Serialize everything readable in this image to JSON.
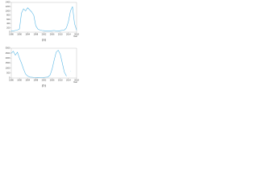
{
  "chart_data": [
    {
      "type": "line",
      "caption": "(a)",
      "x_label": "Year",
      "x": [
        1986,
        1987,
        1988,
        1989,
        1990,
        1991,
        1992,
        1993,
        1994,
        1995,
        1996,
        1997,
        1998,
        1999,
        2000,
        2001,
        2002,
        2003,
        2004,
        2005,
        2006,
        2007,
        2008,
        2009,
        2010,
        2011,
        2012,
        2013,
        2014,
        2015,
        2016,
        2017,
        2018
      ],
      "values": [
        50,
        60,
        80,
        100,
        150,
        900,
        1100,
        1000,
        1150,
        1050,
        950,
        800,
        300,
        150,
        100,
        80,
        70,
        60,
        50,
        60,
        70,
        80,
        60,
        50,
        70,
        90,
        100,
        200,
        500,
        1000,
        1200,
        400,
        100
      ],
      "color": "#5bb8e6",
      "xlim": [
        1986,
        2018
      ],
      "xticks": [
        1986,
        1990,
        1994,
        1998,
        2002,
        2006,
        2010,
        2014,
        2018
      ],
      "ylim": [
        0,
        1400
      ],
      "yticks": [
        0,
        200,
        400,
        600,
        800,
        1000,
        1200,
        1400
      ]
    },
    {
      "type": "line",
      "caption": "(b)",
      "x_label": "Year",
      "x": [
        1986,
        1987,
        1988,
        1989,
        1990,
        1991,
        1992,
        1993,
        1994,
        1995,
        1996,
        1997,
        1998,
        1999,
        2000,
        2001,
        2002,
        2003,
        2004,
        2005,
        2006,
        2007,
        2008,
        2009,
        2010,
        2011,
        2012,
        2013,
        2014,
        2015,
        2016,
        2017,
        2018
      ],
      "values": [
        2500,
        2700,
        2300,
        2600,
        2000,
        1500,
        900,
        400,
        200,
        100,
        80,
        60,
        50,
        60,
        50,
        40,
        60,
        80,
        100,
        300,
        900,
        1800,
        2600,
        2800,
        2400,
        1500,
        600,
        200,
        null,
        700,
        null,
        null,
        null
      ],
      "color": "#5bb8e6",
      "xlim": [
        1986,
        2018
      ],
      "xticks": [
        1986,
        1990,
        1994,
        1998,
        2002,
        2006,
        2010,
        2014,
        2018
      ],
      "ylim": [
        0,
        3000
      ],
      "yticks": [
        0,
        500,
        1000,
        1500,
        2000,
        2500,
        3000
      ]
    }
  ]
}
